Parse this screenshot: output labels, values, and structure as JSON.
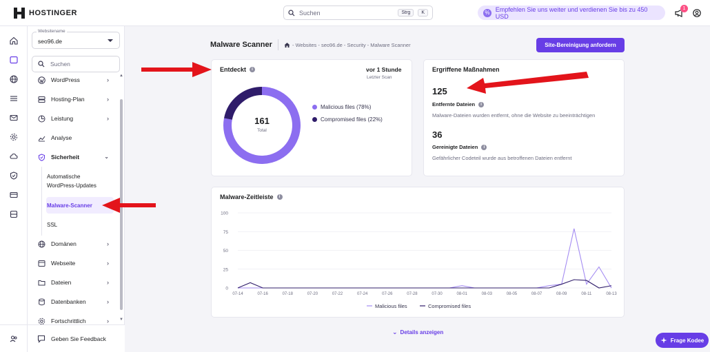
{
  "topbar": {
    "brand": "HOSTINGER",
    "search_placeholder": "Suchen",
    "shortcut_1": "Strg",
    "shortcut_2": "K",
    "referral_text": "Empfehlen Sie uns weiter und verdienen Sie bis zu 450 USD",
    "notification_count": "1"
  },
  "sidebar": {
    "site_label": "Websitename",
    "site_value": "seo96.de",
    "search_placeholder": "Suchen",
    "items": [
      {
        "label": "WordPress",
        "icon": "wordpress-icon"
      },
      {
        "label": "Hosting-Plan",
        "icon": "server-icon"
      },
      {
        "label": "Leistung",
        "icon": "performance-icon"
      },
      {
        "label": "Analyse",
        "icon": "chart-icon"
      },
      {
        "label": "Sicherheit",
        "icon": "shield-icon"
      },
      {
        "label": "Domänen",
        "icon": "globe-icon"
      },
      {
        "label": "Webseite",
        "icon": "browser-icon"
      },
      {
        "label": "Dateien",
        "icon": "folder-icon"
      },
      {
        "label": "Datenbanken",
        "icon": "database-icon"
      },
      {
        "label": "Fortschrittlich",
        "icon": "gear-icon"
      }
    ],
    "sub_items": {
      "auto_updates": "Automatische WordPress-Updates",
      "malware_scanner": "Malware-Scanner",
      "ssl": "SSL"
    },
    "feedback": "Geben Sie Feedback"
  },
  "header": {
    "title": "Malware Scanner",
    "breadcrumb": "- Websites - seo96.de - Security - Malware Scanner",
    "action_button": "Site-Bereinigung anfordern"
  },
  "detected_card": {
    "title": "Entdeckt",
    "time": "vor 1 Stunde",
    "time_sub": "Letzter Scan",
    "total": "161",
    "total_label": "Total",
    "legend": [
      {
        "label": "Malicious files (78%)",
        "color": "#8c6ef0",
        "percent": 78
      },
      {
        "label": "Compromised files (22%)",
        "color": "#2f1c6a",
        "percent": 22
      }
    ]
  },
  "actions_card": {
    "title": "Ergriffene Maßnahmen",
    "removed_count": "125",
    "removed_title": "Entfernte Dateien",
    "removed_desc": "Malware-Dateien wurden entfernt, ohne die Website zu beeinträchtigen",
    "cleaned_count": "36",
    "cleaned_title": "Gereinigte Dateien",
    "cleaned_desc": "Gefährlicher Codeteil wurde aus betroffenen Dateien entfernt"
  },
  "timeline_card": {
    "title": "Malware-Zeitleiste"
  },
  "chart_data": {
    "type": "line",
    "title": "Malware-Zeitleiste",
    "x": [
      "07-14",
      "07-15",
      "07-16",
      "07-17",
      "07-18",
      "07-19",
      "07-20",
      "07-21",
      "07-22",
      "07-23",
      "07-24",
      "07-25",
      "07-26",
      "07-27",
      "07-28",
      "07-29",
      "07-30",
      "07-31",
      "08-01",
      "08-02",
      "08-03",
      "08-04",
      "08-05",
      "08-06",
      "08-07",
      "08-08",
      "08-09",
      "08-10",
      "08-11",
      "08-12",
      "08-13"
    ],
    "x_tick_labels": [
      "07-14",
      "07-16",
      "07-18",
      "07-20",
      "07-22",
      "07-24",
      "07-26",
      "07-28",
      "07-30",
      "08-01",
      "08-03",
      "08-05",
      "08-07",
      "08-09",
      "08-11",
      "08-13"
    ],
    "ylim": [
      0,
      100
    ],
    "y_ticks": [
      "0",
      "25",
      "50",
      "75",
      "100"
    ],
    "series": [
      {
        "name": "Malicious files",
        "color": "#a48cf2",
        "values": [
          0,
          0,
          0,
          0,
          0,
          0,
          0,
          0,
          0,
          0,
          0,
          0,
          0,
          0,
          0,
          0,
          0,
          0,
          3,
          0,
          0,
          0,
          0,
          0,
          0,
          3,
          5,
          79,
          5,
          28,
          0
        ]
      },
      {
        "name": "Compromised files",
        "color": "#2f1c6a",
        "values": [
          0,
          7,
          0,
          0,
          0,
          0,
          0,
          0,
          0,
          0,
          0,
          0,
          0,
          0,
          0,
          0,
          0,
          0,
          0,
          0,
          0,
          0,
          0,
          0,
          0,
          0,
          5,
          11,
          10,
          0,
          3
        ]
      }
    ]
  },
  "footer": {
    "details_link": "Details anzeigen",
    "help_button": "Frage Kodee"
  }
}
